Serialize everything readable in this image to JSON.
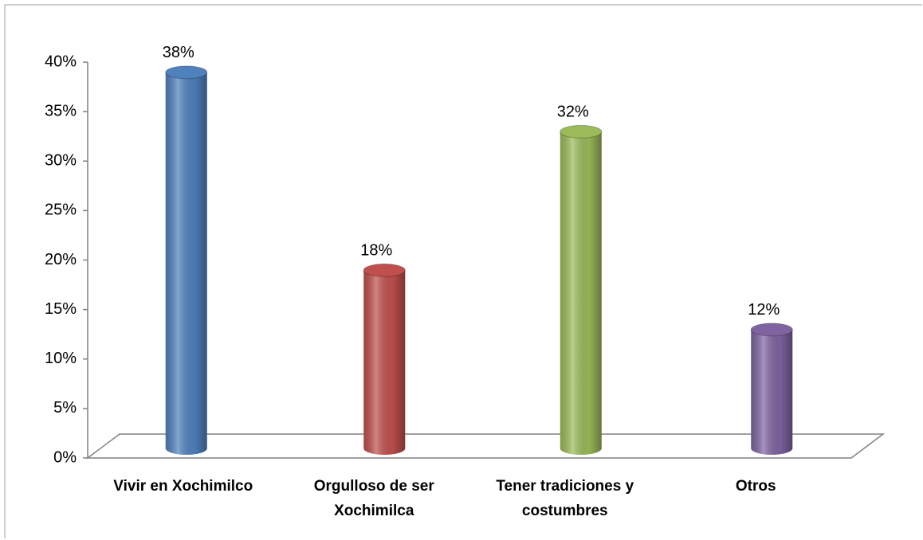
{
  "chart_data": {
    "type": "bar3d",
    "categories": [
      "Vivir en Xochimilco",
      "Orgulloso de ser Xochimilca",
      "Tener tradiciones y costumbres",
      "Otros"
    ],
    "values": [
      38,
      18,
      32,
      12
    ],
    "value_labels": [
      "38%",
      "18%",
      "32%",
      "12%"
    ],
    "colors": [
      "#4f81bd",
      "#c0504d",
      "#9bbb59",
      "#8064a2"
    ],
    "ylim": [
      0,
      40
    ],
    "yticks": [
      {
        "value": 0,
        "label": "0%"
      },
      {
        "value": 5,
        "label": "5%"
      },
      {
        "value": 10,
        "label": "10%"
      },
      {
        "value": 15,
        "label": "15%"
      },
      {
        "value": 20,
        "label": "20%"
      },
      {
        "value": 25,
        "label": "25%"
      },
      {
        "value": 30,
        "label": "30%"
      },
      {
        "value": 35,
        "label": "35%"
      },
      {
        "value": 40,
        "label": "40%"
      }
    ]
  }
}
